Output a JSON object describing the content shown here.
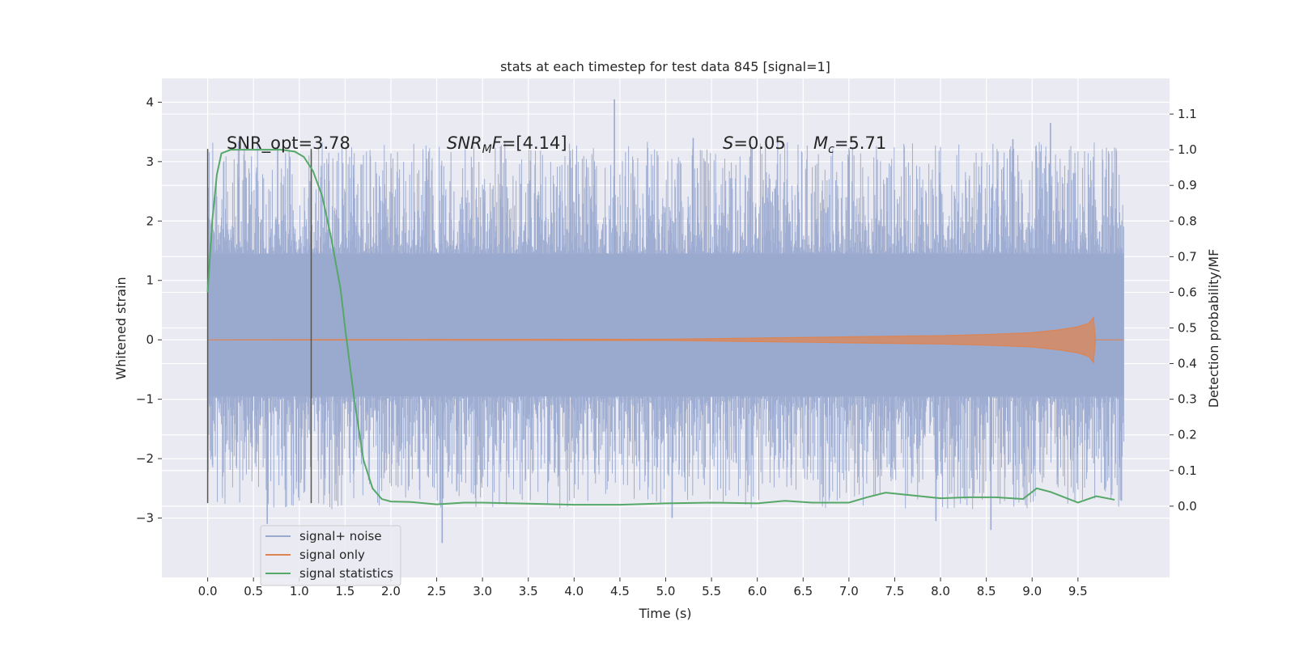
{
  "chart_data": {
    "type": "line",
    "title": "stats at each timestep for test data 845 [signal=1]",
    "xlabel": "Time (s)",
    "ylabel": "Whitened strain",
    "y2label": "Detection probability/MF",
    "xlim": [
      -0.5,
      10.5
    ],
    "ylim": [
      -4.0,
      4.4
    ],
    "y2lim": [
      -0.2,
      1.2
    ],
    "x_ticks": [
      "0.0",
      "0.5",
      "1.0",
      "1.5",
      "2.0",
      "2.5",
      "3.0",
      "3.5",
      "4.0",
      "4.5",
      "5.0",
      "5.5",
      "6.0",
      "6.5",
      "7.0",
      "7.5",
      "8.0",
      "8.5",
      "9.0",
      "9.5"
    ],
    "y_ticks": [
      "4",
      "3",
      "2",
      "1",
      "0",
      "−1",
      "−2",
      "−3"
    ],
    "y2_ticks": [
      "1.1",
      "1.0",
      "0.9",
      "0.8",
      "0.7",
      "0.6",
      "0.5",
      "0.4",
      "0.3",
      "0.2",
      "0.1",
      "0.0"
    ],
    "grid": true,
    "legend_position": "lower-left",
    "colors": {
      "background": "#eaeaf2",
      "grid": "#ffffff",
      "noise": "#9aaacf",
      "signal": "#dd8452",
      "stat": "#55a868",
      "vline": "#555555"
    },
    "annotations": {
      "snr_opt": "SNR_opt=3.78",
      "snr_mf_var": "SNR",
      "snr_mf_sub": "M",
      "snr_mf_rest": "F=[4.14]",
      "s_var": "S",
      "s_val": "=0.05",
      "mc_var": "M",
      "mc_sub": "c",
      "mc_val": "=5.71"
    },
    "vertical_markers_x": [
      0.0,
      1.13
    ],
    "series": [
      {
        "name": "signal+ noise",
        "axis": "left",
        "style": "dense-noise",
        "x_range": [
          0.0,
          10.0
        ],
        "core_band": [
          -0.95,
          1.45
        ],
        "notable_peaks": [
          {
            "x": 4.44,
            "y": 4.05
          },
          {
            "x": 9.2,
            "y": 3.65
          },
          {
            "x": 8.79,
            "y": 3.38
          },
          {
            "x": 5.3,
            "y": 3.4
          },
          {
            "x": 2.56,
            "y": -3.42
          },
          {
            "x": 8.55,
            "y": -3.2
          },
          {
            "x": 7.95,
            "y": -3.05
          },
          {
            "x": 5.07,
            "y": -3.0
          },
          {
            "x": 0.65,
            "y": -3.1
          }
        ]
      },
      {
        "name": "signal only",
        "axis": "left",
        "style": "chirp",
        "x": [
          0.0,
          5.0,
          6.0,
          7.0,
          8.0,
          8.5,
          9.0,
          9.3,
          9.5,
          9.62,
          9.67,
          9.69,
          10.0
        ],
        "amplitude": [
          0.0,
          0.01,
          0.03,
          0.05,
          0.07,
          0.09,
          0.12,
          0.17,
          0.22,
          0.28,
          0.38,
          0.0,
          0.0
        ]
      },
      {
        "name": "signal statistics",
        "axis": "right",
        "x": [
          0.0,
          0.05,
          0.1,
          0.15,
          0.25,
          0.4,
          0.6,
          0.8,
          0.95,
          1.05,
          1.15,
          1.25,
          1.35,
          1.45,
          1.5,
          1.6,
          1.7,
          1.8,
          1.9,
          2.0,
          2.2,
          2.5,
          2.8,
          3.0,
          3.5,
          4.0,
          4.5,
          5.0,
          5.5,
          6.0,
          6.3,
          6.6,
          7.0,
          7.2,
          7.4,
          7.7,
          8.0,
          8.3,
          8.6,
          8.9,
          9.05,
          9.2,
          9.5,
          9.7,
          9.9
        ],
        "y": [
          0.6,
          0.8,
          0.93,
          0.99,
          1.0,
          1.0,
          1.0,
          1.0,
          0.995,
          0.98,
          0.94,
          0.87,
          0.75,
          0.61,
          0.5,
          0.3,
          0.13,
          0.05,
          0.02,
          0.013,
          0.012,
          0.005,
          0.01,
          0.01,
          0.007,
          0.004,
          0.004,
          0.008,
          0.01,
          0.008,
          0.015,
          0.01,
          0.01,
          0.025,
          0.038,
          0.03,
          0.022,
          0.025,
          0.025,
          0.02,
          0.05,
          0.04,
          0.01,
          0.028,
          0.018
        ]
      }
    ]
  }
}
